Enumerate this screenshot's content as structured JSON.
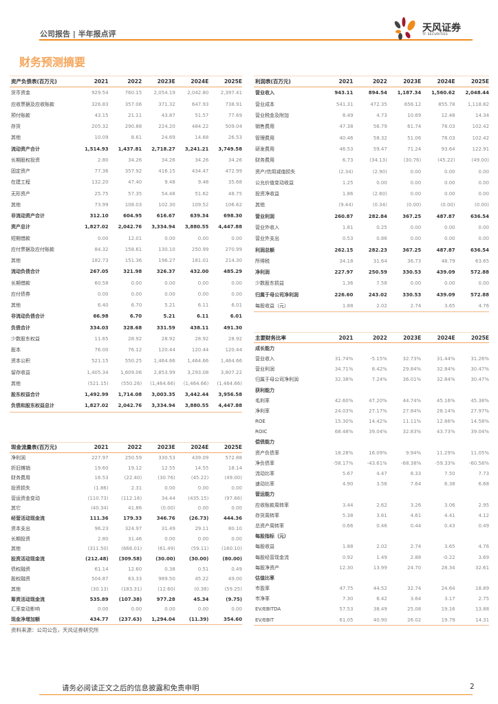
{
  "header": {
    "report_type": "公司报告 | 半年报点评",
    "logo_name": "天风证券",
    "logo_sub": "TF SECURITIES"
  },
  "title": "财务预测摘要",
  "colors": {
    "accent": "#f08a1c",
    "title": "#f5a55a"
  },
  "balance_sheet": {
    "header": [
      "资产负债表(百万元)",
      "2021",
      "2022",
      "2023E",
      "2024E",
      "2025E"
    ],
    "rows": [
      {
        "label": "货币资金",
        "values": [
          "929.54",
          "760.15",
          "2,054.19",
          "2,042.80",
          "2,397.41"
        ]
      },
      {
        "label": "应收票据及应收账款",
        "values": [
          "326.83",
          "357.06",
          "371.32",
          "647.93",
          "738.91"
        ]
      },
      {
        "label": "预付账款",
        "values": [
          "43.15",
          "21.11",
          "43.87",
          "51.57",
          "77.69"
        ]
      },
      {
        "label": "存货",
        "values": [
          "205.32",
          "290.88",
          "224.20",
          "484.22",
          "509.04"
        ]
      },
      {
        "label": "其他",
        "values": [
          "10.09",
          "8.61",
          "24.69",
          "14.68",
          "26.53"
        ]
      },
      {
        "label": "流动资产合计",
        "values": [
          "1,514.93",
          "1,437.81",
          "2,718.27",
          "3,241.21",
          "3,749.58"
        ],
        "bold": true
      },
      {
        "label": "长期股权投资",
        "values": [
          "2.80",
          "34.26",
          "34.26",
          "34.26",
          "34.26"
        ]
      },
      {
        "label": "固定资产",
        "values": [
          "77.36",
          "357.92",
          "416.15",
          "434.47",
          "472.99"
        ]
      },
      {
        "label": "在建工程",
        "values": [
          "132.20",
          "47.40",
          "9.48",
          "9.48",
          "35.68"
        ]
      },
      {
        "label": "无形资产",
        "values": [
          "25.75",
          "57.35",
          "54.48",
          "51.62",
          "48.75"
        ]
      },
      {
        "label": "其他",
        "values": [
          "73.99",
          "108.03",
          "102.30",
          "109.52",
          "106.62"
        ]
      },
      {
        "label": "非流动资产合计",
        "values": [
          "312.10",
          "604.95",
          "616.67",
          "639.34",
          "698.30"
        ],
        "bold": true
      },
      {
        "label": "资产总计",
        "values": [
          "1,827.02",
          "2,042.76",
          "3,334.94",
          "3,880.55",
          "4,447.88"
        ],
        "bold": true
      },
      {
        "label": "短期借款",
        "values": [
          "0.00",
          "12.01",
          "0.00",
          "0.00",
          "0.00"
        ]
      },
      {
        "label": "应付票据及应付账款",
        "values": [
          "84.32",
          "158.61",
          "130.10",
          "250.99",
          "270.99"
        ]
      },
      {
        "label": "其他",
        "values": [
          "182.73",
          "151.36",
          "196.27",
          "181.01",
          "214.30"
        ]
      },
      {
        "label": "流动负债合计",
        "values": [
          "267.05",
          "321.98",
          "326.37",
          "432.00",
          "485.29"
        ],
        "bold": true
      },
      {
        "label": "长期借款",
        "values": [
          "60.58",
          "0.00",
          "0.00",
          "0.00",
          "0.00"
        ]
      },
      {
        "label": "应付债券",
        "values": [
          "0.00",
          "0.00",
          "0.00",
          "0.00",
          "0.00"
        ]
      },
      {
        "label": "其他",
        "values": [
          "6.40",
          "6.70",
          "5.21",
          "6.11",
          "6.01"
        ]
      },
      {
        "label": "非流动负债合计",
        "values": [
          "66.98",
          "6.70",
          "5.21",
          "6.11",
          "6.01"
        ],
        "bold": true
      },
      {
        "label": "负债合计",
        "values": [
          "334.03",
          "328.68",
          "331.59",
          "438.11",
          "491.30"
        ],
        "bold": true
      },
      {
        "label": "少数股东权益",
        "values": [
          "11.65",
          "28.92",
          "28.92",
          "28.92",
          "28.92"
        ]
      },
      {
        "label": "股本",
        "values": [
          "76.00",
          "76.12",
          "120.44",
          "120.44",
          "120.44"
        ]
      },
      {
        "label": "资本公积",
        "values": [
          "521.15",
          "550.25",
          "1,464.66",
          "1,464.66",
          "1,464.66"
        ]
      },
      {
        "label": "留存收益",
        "values": [
          "1,405.34",
          "1,609.06",
          "2,853.99",
          "3,293.08",
          "3,807.22"
        ]
      },
      {
        "label": "其他",
        "values": [
          "(521.15)",
          "(550.26)",
          "(1,464.66)",
          "(1,464.66)",
          "(1,464.66)"
        ]
      },
      {
        "label": "股东权益合计",
        "values": [
          "1,492.99",
          "1,714.08",
          "3,003.35",
          "3,442.44",
          "3,956.58"
        ],
        "bold": true
      },
      {
        "label": "负债和股东权益总计",
        "values": [
          "1,827.02",
          "2,042.76",
          "3,334.94",
          "3,880.55",
          "4,447.88"
        ],
        "bold": true
      }
    ]
  },
  "income_statement": {
    "header": [
      "利润表(百万元)",
      "2021",
      "2022",
      "2023E",
      "2024E",
      "2025E"
    ],
    "rows": [
      {
        "label": "营业收入",
        "values": [
          "943.11",
          "894.54",
          "1,187.34",
          "1,560.62",
          "2,048.44"
        ],
        "bold": true
      },
      {
        "label": "营业成本",
        "values": [
          "541.31",
          "472.35",
          "656.12",
          "855.78",
          "1,118.82"
        ]
      },
      {
        "label": "营业税金及附加",
        "values": [
          "8.49",
          "4.73",
          "10.69",
          "12.48",
          "14.34"
        ]
      },
      {
        "label": "销售费用",
        "values": [
          "47.38",
          "56.79",
          "61.74",
          "78.03",
          "102.42"
        ]
      },
      {
        "label": "管理费用",
        "values": [
          "40.46",
          "58.32",
          "51.06",
          "78.03",
          "102.42"
        ]
      },
      {
        "label": "研发费用",
        "values": [
          "46.53",
          "59.47",
          "71.24",
          "93.64",
          "122.91"
        ]
      },
      {
        "label": "财务费用",
        "values": [
          "6.73",
          "(34.13)",
          "(30.76)",
          "(45.22)",
          "(49.00)"
        ]
      },
      {
        "label": "资产/信用减值损失",
        "values": [
          "(2.34)",
          "(2.90)",
          "0.00",
          "0.00",
          "0.00"
        ]
      },
      {
        "label": "公允价值变动收益",
        "values": [
          "1.25",
          "0.00",
          "0.00",
          "0.00",
          "0.00"
        ]
      },
      {
        "label": "投资净收益",
        "values": [
          "1.86",
          "(2.60)",
          "0.00",
          "0.00",
          "0.00"
        ]
      },
      {
        "label": "其他",
        "values": [
          "(9.44)",
          "(0.34)",
          "(0.00)",
          "(0.00)",
          "(0.00)"
        ]
      },
      {
        "label": "营业利润",
        "values": [
          "260.87",
          "282.84",
          "367.25",
          "487.87",
          "636.54"
        ],
        "bold": true
      },
      {
        "label": "营业外收入",
        "values": [
          "1.81",
          "0.25",
          "0.00",
          "0.00",
          "0.00"
        ]
      },
      {
        "label": "营业外支出",
        "values": [
          "0.53",
          "0.86",
          "0.00",
          "0.00",
          "0.00"
        ]
      },
      {
        "label": "利润总额",
        "values": [
          "262.15",
          "282.23",
          "367.25",
          "487.87",
          "636.54"
        ],
        "bold": true
      },
      {
        "label": "所得税",
        "values": [
          "34.18",
          "31.64",
          "36.73",
          "48.79",
          "63.65"
        ]
      },
      {
        "label": "净利润",
        "values": [
          "227.97",
          "250.59",
          "330.53",
          "439.09",
          "572.88"
        ],
        "bold": true
      },
      {
        "label": "少数股东损益",
        "values": [
          "1.36",
          "7.58",
          "0.00",
          "0.00",
          "0.00"
        ]
      },
      {
        "label": "归属于母公司净利润",
        "values": [
          "226.60",
          "243.02",
          "330.53",
          "439.09",
          "572.88"
        ],
        "bold": true
      },
      {
        "label": "每股收益（元）",
        "values": [
          "1.88",
          "2.02",
          "2.74",
          "3.65",
          "4.76"
        ]
      }
    ]
  },
  "ratios": {
    "header": [
      "主要财务比率",
      "2021",
      "2022",
      "2023E",
      "2024E",
      "2025E"
    ],
    "rows": [
      {
        "label": "成长能力",
        "section": true,
        "values": [
          "",
          "",
          "",
          "",
          ""
        ]
      },
      {
        "label": "营业收入",
        "values": [
          "31.74%",
          "-5.15%",
          "32.73%",
          "31.44%",
          "31.26%"
        ]
      },
      {
        "label": "营业利润",
        "values": [
          "34.71%",
          "8.42%",
          "29.84%",
          "32.84%",
          "30.47%"
        ]
      },
      {
        "label": "归属于母公司净利润",
        "values": [
          "32.38%",
          "7.24%",
          "36.01%",
          "32.84%",
          "30.47%"
        ]
      },
      {
        "label": "获利能力",
        "section": true,
        "values": [
          "",
          "",
          "",
          "",
          ""
        ]
      },
      {
        "label": "毛利率",
        "values": [
          "42.60%",
          "47.20%",
          "44.74%",
          "45.16%",
          "45.38%"
        ]
      },
      {
        "label": "净利率",
        "values": [
          "24.03%",
          "27.17%",
          "27.84%",
          "28.14%",
          "27.97%"
        ]
      },
      {
        "label": "ROE",
        "values": [
          "15.30%",
          "14.42%",
          "11.11%",
          "12.86%",
          "14.58%"
        ]
      },
      {
        "label": "ROIC",
        "values": [
          "68.48%",
          "39.04%",
          "32.83%",
          "43.73%",
          "39.04%"
        ]
      },
      {
        "label": "偿债能力",
        "section": true,
        "values": [
          "",
          "",
          "",
          "",
          ""
        ]
      },
      {
        "label": "资产负债率",
        "values": [
          "18.28%",
          "16.09%",
          "9.94%",
          "11.29%",
          "11.05%"
        ]
      },
      {
        "label": "净负债率",
        "values": [
          "-58.17%",
          "-43.61%",
          "-68.38%",
          "-59.33%",
          "-60.58%"
        ]
      },
      {
        "label": "流动比率",
        "values": [
          "5.67",
          "4.47",
          "8.33",
          "7.50",
          "7.73"
        ]
      },
      {
        "label": "速动比率",
        "values": [
          "4.90",
          "3.56",
          "7.64",
          "6.38",
          "6.68"
        ]
      },
      {
        "label": "营运能力",
        "section": true,
        "values": [
          "",
          "",
          "",
          "",
          ""
        ]
      },
      {
        "label": "应收账款周转率",
        "values": [
          "3.44",
          "2.62",
          "3.26",
          "3.06",
          "2.95"
        ]
      },
      {
        "label": "存货周转率",
        "values": [
          "5.38",
          "3.61",
          "4.61",
          "4.41",
          "4.12"
        ]
      },
      {
        "label": "总资产周转率",
        "values": [
          "0.66",
          "0.46",
          "0.44",
          "0.43",
          "0.49"
        ]
      },
      {
        "label": "每股指标（元）",
        "section": true,
        "values": [
          "",
          "",
          "",
          "",
          ""
        ]
      },
      {
        "label": "每股收益",
        "values": [
          "1.88",
          "2.02",
          "2.74",
          "3.65",
          "4.76"
        ]
      },
      {
        "label": "每股经营现金流",
        "values": [
          "0.92",
          "1.49",
          "2.88",
          "-0.22",
          "3.69"
        ]
      },
      {
        "label": "每股净资产",
        "values": [
          "12.30",
          "13.99",
          "24.70",
          "28.34",
          "32.61"
        ]
      },
      {
        "label": "估值比率",
        "section": true,
        "values": [
          "",
          "",
          "",
          "",
          ""
        ]
      },
      {
        "label": "市盈率",
        "values": [
          "47.75",
          "44.52",
          "32.74",
          "24.64",
          "18.89"
        ]
      },
      {
        "label": "市净率",
        "values": [
          "7.30",
          "6.42",
          "3.64",
          "3.17",
          "2.75"
        ]
      },
      {
        "label": "EV/EBITDA",
        "values": [
          "57.53",
          "38.49",
          "25.08",
          "19.16",
          "13.88"
        ]
      },
      {
        "label": "EV/EBIT",
        "values": [
          "61.05",
          "40.90",
          "26.02",
          "19.79",
          "14.31"
        ]
      }
    ]
  },
  "cash_flow": {
    "header": [
      "现金流量表(百万元)",
      "2021",
      "2022",
      "2023E",
      "2024E",
      "2025E"
    ],
    "rows": [
      {
        "label": "净利润",
        "values": [
          "227.97",
          "250.59",
          "330.53",
          "439.09",
          "572.88"
        ]
      },
      {
        "label": "折旧摊销",
        "values": [
          "19.60",
          "19.12",
          "12.55",
          "14.55",
          "18.14"
        ]
      },
      {
        "label": "财务费用",
        "values": [
          "16.53",
          "(22.40)",
          "(30.76)",
          "(45.22)",
          "(49.00)"
        ]
      },
      {
        "label": "投资损失",
        "values": [
          "(1.86)",
          "2.31",
          "0.00",
          "0.00",
          "0.00"
        ]
      },
      {
        "label": "营运资金变动",
        "values": [
          "(110.73)",
          "(112.16)",
          "34.44",
          "(435.15)",
          "(97.66)"
        ]
      },
      {
        "label": "其它",
        "values": [
          "(40.34)",
          "41.86",
          "(0.00)",
          "0.00",
          "0.00"
        ]
      },
      {
        "label": "经营活动现金流",
        "values": [
          "111.36",
          "179.33",
          "346.76",
          "(26.73)",
          "444.36"
        ],
        "bold": true
      },
      {
        "label": "资本支出",
        "values": [
          "96.23",
          "324.97",
          "31.49",
          "29.11",
          "80.10"
        ]
      },
      {
        "label": "长期投资",
        "values": [
          "2.80",
          "31.46",
          "0.00",
          "0.00",
          "0.00"
        ]
      },
      {
        "label": "其他",
        "values": [
          "(311.50)",
          "(666.01)",
          "(61.49)",
          "(59.11)",
          "(160.10)"
        ]
      },
      {
        "label": "投资活动现金流",
        "values": [
          "(212.48)",
          "(309.58)",
          "(30.00)",
          "(30.00)",
          "(80.00)"
        ],
        "bold": true
      },
      {
        "label": "债权融资",
        "values": [
          "61.14",
          "12.60",
          "0.38",
          "0.51",
          "0.49"
        ]
      },
      {
        "label": "股权融资",
        "values": [
          "504.87",
          "63.33",
          "989.50",
          "45.22",
          "49.00"
        ]
      },
      {
        "label": "其他",
        "values": [
          "(30.13)",
          "(183.31)",
          "(12.60)",
          "(0.38)",
          "(59.25)"
        ]
      },
      {
        "label": "筹资活动现金流",
        "values": [
          "535.89",
          "(107.38)",
          "977.28",
          "45.34",
          "(9.75)"
        ],
        "bold": true
      },
      {
        "label": "汇率变动影响",
        "values": [
          "0.00",
          "0.00",
          "0.00",
          "0.00",
          "0.00"
        ]
      },
      {
        "label": "现金净增加额",
        "values": [
          "434.77",
          "(237.63)",
          "1,294.04",
          "(11.39)",
          "354.60"
        ],
        "bold": true
      }
    ]
  },
  "source": "资料来源：公司公告，天风证券研究所",
  "footer": {
    "disclaimer": "请务必阅读正文之后的信息披露和免责申明",
    "page": "2"
  }
}
